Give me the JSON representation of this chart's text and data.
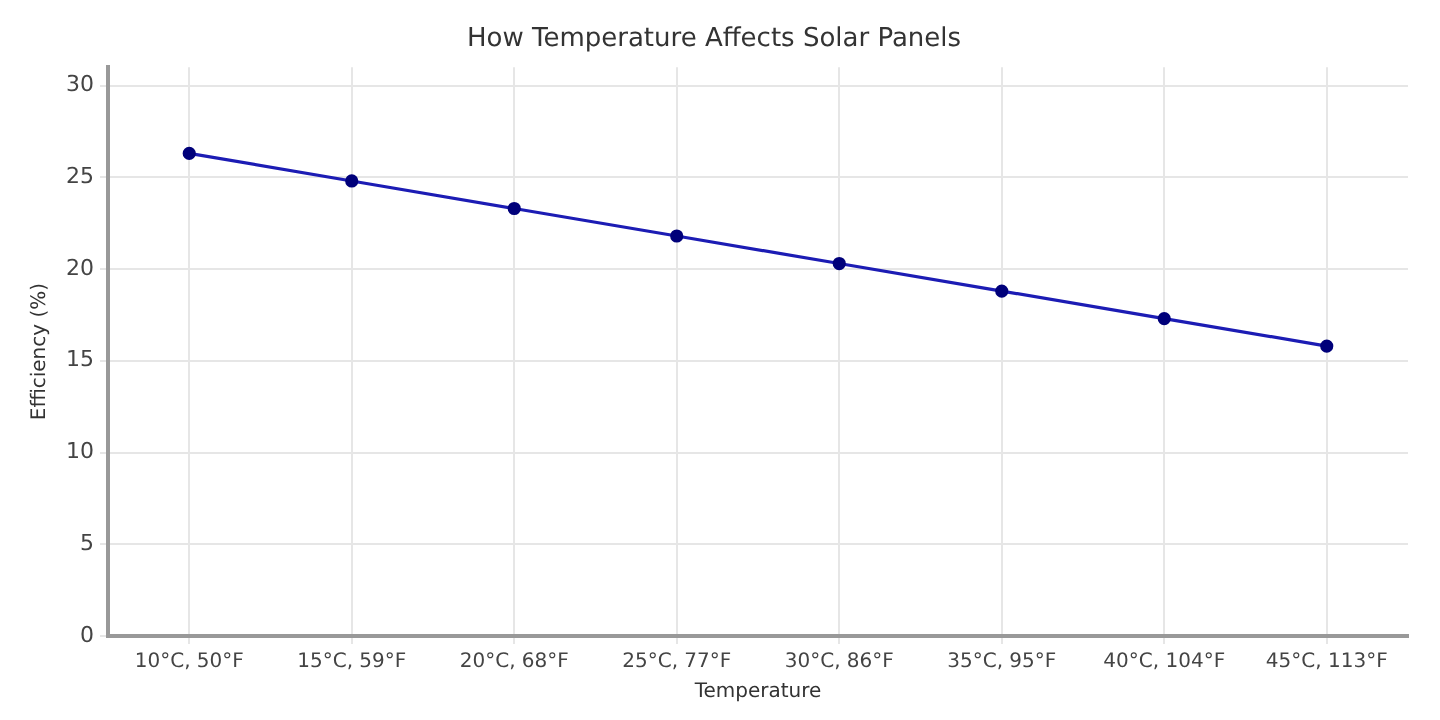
{
  "chart_data": {
    "type": "line",
    "title": "How Temperature Affects Solar Panels",
    "xlabel": "Temperature",
    "ylabel": "Efficiency (%)",
    "categories": [
      "10°C, 50°F",
      "15°C, 59°F",
      "20°C, 68°F",
      "25°C, 77°F",
      "30°C, 86°F",
      "35°C, 95°F",
      "40°C, 104°F",
      "45°C, 113°F"
    ],
    "series": [
      {
        "color": "#1c1cb4",
        "values": [
          26.3,
          24.8,
          23.3,
          21.8,
          20.3,
          18.8,
          17.3,
          15.8
        ]
      }
    ],
    "ylim": [
      0,
      31
    ],
    "yticks": [
      0,
      5,
      10,
      15,
      20,
      25,
      30
    ],
    "grid": true,
    "marker": "circle",
    "line_style": "solid"
  }
}
